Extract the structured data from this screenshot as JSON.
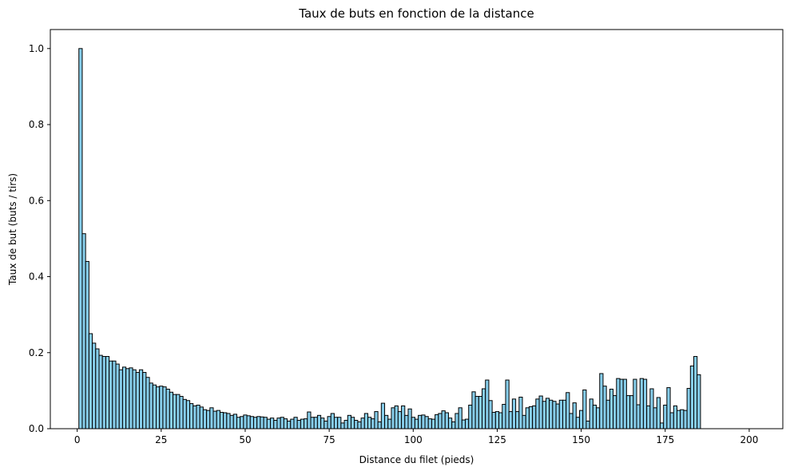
{
  "chart_data": {
    "type": "bar",
    "title": "Taux de buts en fonction de la distance",
    "xlabel": "Distance du filet (pieds)",
    "ylabel": "Taux de but (buts / tirs)",
    "xlim": [
      -8,
      210
    ],
    "ylim": [
      0,
      1.05
    ],
    "xticks": [
      0,
      25,
      50,
      75,
      100,
      125,
      150,
      175,
      200
    ],
    "yticks": [
      0.0,
      0.2,
      0.4,
      0.6,
      0.8,
      1.0
    ],
    "ytick_labels": [
      "0.0",
      "0.2",
      "0.4",
      "0.6",
      "0.8",
      "1.0"
    ],
    "bar_color": "#87CEEB",
    "edge_color": "#000000",
    "x_start": 1,
    "bar_width": 1,
    "values": [
      1.0,
      0.513,
      0.44,
      0.25,
      0.225,
      0.21,
      0.193,
      0.19,
      0.19,
      0.178,
      0.178,
      0.17,
      0.155,
      0.162,
      0.158,
      0.16,
      0.155,
      0.148,
      0.155,
      0.148,
      0.135,
      0.12,
      0.115,
      0.11,
      0.112,
      0.11,
      0.104,
      0.096,
      0.09,
      0.09,
      0.085,
      0.077,
      0.074,
      0.066,
      0.06,
      0.062,
      0.057,
      0.05,
      0.048,
      0.055,
      0.046,
      0.048,
      0.043,
      0.042,
      0.04,
      0.035,
      0.038,
      0.03,
      0.032,
      0.036,
      0.034,
      0.032,
      0.03,
      0.032,
      0.031,
      0.03,
      0.025,
      0.028,
      0.022,
      0.028,
      0.03,
      0.026,
      0.02,
      0.025,
      0.03,
      0.022,
      0.025,
      0.026,
      0.044,
      0.03,
      0.03,
      0.035,
      0.028,
      0.02,
      0.032,
      0.04,
      0.03,
      0.03,
      0.015,
      0.022,
      0.035,
      0.03,
      0.022,
      0.018,
      0.028,
      0.04,
      0.03,
      0.026,
      0.045,
      0.018,
      0.067,
      0.035,
      0.025,
      0.055,
      0.06,
      0.045,
      0.06,
      0.035,
      0.052,
      0.03,
      0.025,
      0.035,
      0.036,
      0.032,
      0.026,
      0.025,
      0.037,
      0.04,
      0.047,
      0.042,
      0.028,
      0.018,
      0.04,
      0.055,
      0.023,
      0.025,
      0.062,
      0.097,
      0.085,
      0.085,
      0.105,
      0.128,
      0.074,
      0.043,
      0.045,
      0.042,
      0.064,
      0.128,
      0.045,
      0.078,
      0.045,
      0.083,
      0.035,
      0.055,
      0.058,
      0.06,
      0.078,
      0.086,
      0.072,
      0.08,
      0.075,
      0.072,
      0.065,
      0.075,
      0.075,
      0.095,
      0.04,
      0.068,
      0.03,
      0.048,
      0.102,
      0.02,
      0.078,
      0.062,
      0.055,
      0.145,
      0.112,
      0.075,
      0.104,
      0.087,
      0.132,
      0.13,
      0.13,
      0.087,
      0.087,
      0.13,
      0.063,
      0.132,
      0.13,
      0.06,
      0.105,
      0.055,
      0.082,
      0.015,
      0.062,
      0.108,
      0.042,
      0.06,
      0.048,
      0.05,
      0.048,
      0.106,
      0.165,
      0.19,
      0.142
    ]
  }
}
